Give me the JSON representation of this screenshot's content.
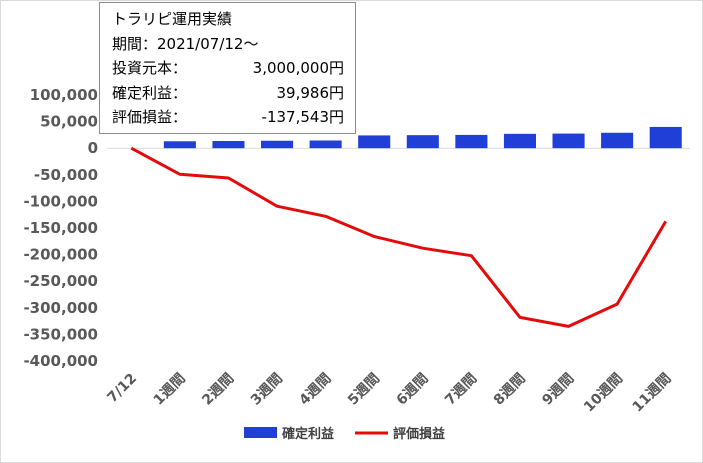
{
  "colors": {
    "bar": "#1f3fd6",
    "line": "#e30b0b",
    "axis_text": "#595959",
    "zero_line": "#d9d9d9"
  },
  "info": {
    "title": "トラリピ運用実績",
    "period": "期間：2021/07/12～",
    "rows": [
      {
        "label": "投資元本：",
        "value": "3,000,000円"
      },
      {
        "label": "確定利益：",
        "value": "39,986円"
      },
      {
        "label": "評価損益：",
        "value": "-137,543円"
      }
    ]
  },
  "chart_data": {
    "type": "bar+line",
    "categories": [
      "7/12",
      "1週間",
      "2週間",
      "3週間",
      "4週間",
      "5週間",
      "6週間",
      "7週間",
      "8週間",
      "9週間",
      "10週間",
      "11週間"
    ],
    "series": [
      {
        "name": "確定利益",
        "type": "bar",
        "values": [
          0,
          13000,
          13500,
          14000,
          14500,
          24000,
          24500,
          25000,
          27000,
          27500,
          29000,
          39986
        ]
      },
      {
        "name": "評価損益",
        "type": "line",
        "values": [
          0,
          -49000,
          -56000,
          -109000,
          -128000,
          -166000,
          -188000,
          -202000,
          -318000,
          -335000,
          -293000,
          -137543
        ]
      }
    ],
    "ylim": [
      -400000,
      100000
    ],
    "yticks": [
      "100,000",
      "50,000",
      "0",
      "-50,000",
      "-100,000",
      "-150,000",
      "-200,000",
      "-250,000",
      "-300,000",
      "-350,000",
      "-400,000"
    ],
    "ytick_values": [
      100000,
      50000,
      0,
      -50000,
      -100000,
      -150000,
      -200000,
      -250000,
      -300000,
      -350000,
      -400000
    ],
    "legend_position": "bottom",
    "grid": false
  }
}
